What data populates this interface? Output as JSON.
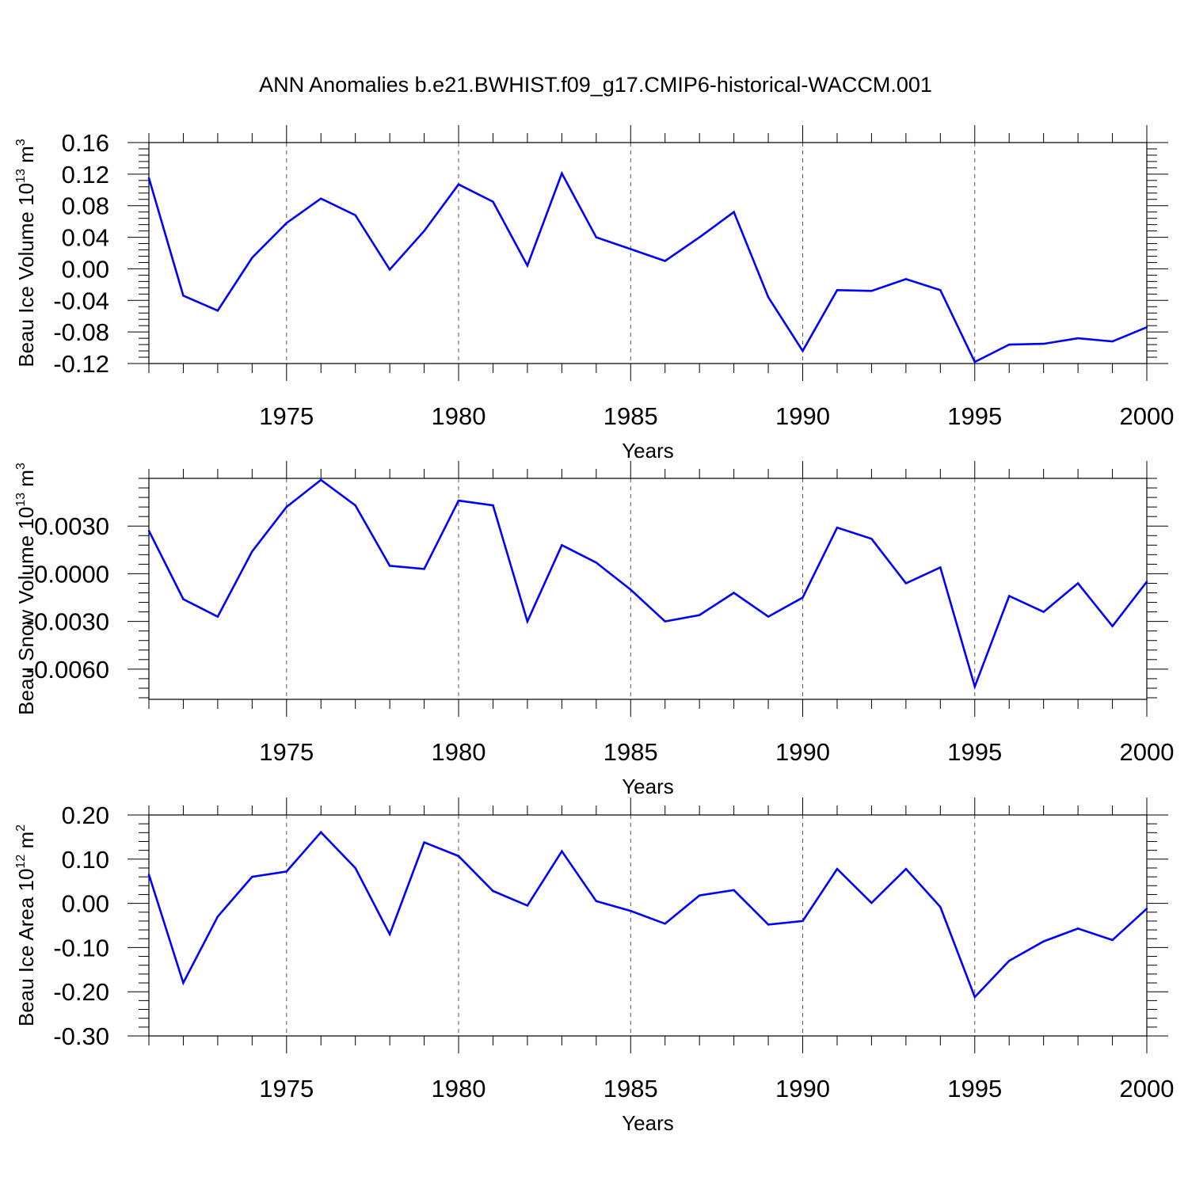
{
  "title": "ANN Anomalies b.e21.BWHIST.f09_g17.CMIP6-historical-WACCM.001",
  "colors": {
    "line": "#0000ff",
    "axis": "#000000",
    "grid": "#555555",
    "background": "#ffffff"
  },
  "chart_data": [
    {
      "type": "line",
      "ylabel": {
        "prefix": "Beau Ice Volume 10",
        "exp": "13",
        "unit": " m",
        "unit_exp": "3"
      },
      "xlabel": "Years",
      "xlim": [
        1971,
        2000
      ],
      "ylim": [
        -0.12,
        0.16
      ],
      "yticks": [
        -0.12,
        -0.08,
        -0.04,
        0.0,
        0.04,
        0.08,
        0.12,
        0.16
      ],
      "ytick_labels": [
        "-0.12",
        "-0.08",
        "-0.04",
        "0.00",
        "0.04",
        "0.08",
        "0.12",
        "0.16"
      ],
      "xticks": [
        1975,
        1980,
        1985,
        1990,
        1995,
        2000
      ],
      "xtick_labels": [
        "1975",
        "1980",
        "1985",
        "1990",
        "1995",
        "2000"
      ],
      "x": [
        1971,
        1972,
        1973,
        1974,
        1975,
        1976,
        1977,
        1978,
        1979,
        1980,
        1981,
        1982,
        1983,
        1984,
        1985,
        1986,
        1987,
        1988,
        1989,
        1990,
        1991,
        1992,
        1993,
        1994,
        1995,
        1996,
        1997,
        1998,
        1999,
        2000
      ],
      "values": [
        0.115,
        -0.034,
        -0.053,
        0.014,
        0.058,
        0.089,
        0.068,
        -0.001,
        0.048,
        0.107,
        0.085,
        0.004,
        0.121,
        0.04,
        0.025,
        0.01,
        0.04,
        0.072,
        -0.036,
        -0.104,
        -0.027,
        -0.028,
        -0.013,
        -0.027,
        -0.118,
        -0.096,
        -0.095,
        -0.088,
        -0.092,
        -0.074
      ]
    },
    {
      "type": "line",
      "ylabel": {
        "prefix": "Beau Snow Volume 10",
        "exp": "13",
        "unit": " m",
        "unit_exp": "3"
      },
      "xlabel": "Years",
      "xlim": [
        1971,
        2000
      ],
      "ylim": [
        -0.0079,
        0.006
      ],
      "yticks": [
        -0.006,
        -0.003,
        0.0,
        0.003
      ],
      "ytick_labels": [
        "-0.0060",
        "-0.0030",
        "0.0000",
        "0.0030"
      ],
      "xticks": [
        1975,
        1980,
        1985,
        1990,
        1995,
        2000
      ],
      "xtick_labels": [
        "1975",
        "1980",
        "1985",
        "1990",
        "1995",
        "2000"
      ],
      "x": [
        1971,
        1972,
        1973,
        1974,
        1975,
        1976,
        1977,
        1978,
        1979,
        1980,
        1981,
        1982,
        1983,
        1984,
        1985,
        1986,
        1987,
        1988,
        1989,
        1990,
        1991,
        1992,
        1993,
        1994,
        1995,
        1996,
        1997,
        1998,
        1999,
        2000
      ],
      "values": [
        0.0027,
        -0.0016,
        -0.0027,
        0.0014,
        0.0042,
        0.0059,
        0.0043,
        0.0005,
        0.0003,
        0.0046,
        0.0043,
        -0.003,
        0.0018,
        0.0007,
        -0.001,
        -0.003,
        -0.0026,
        -0.0012,
        -0.0027,
        -0.0015,
        0.0029,
        0.0022,
        -0.0006,
        0.0004,
        -0.0071,
        -0.0014,
        -0.0024,
        -0.0006,
        -0.0033,
        -0.0005
      ]
    },
    {
      "type": "line",
      "ylabel": {
        "prefix": "Beau Ice Area 10",
        "exp": "12",
        "unit": " m",
        "unit_exp": "2"
      },
      "xlabel": "Years",
      "xlim": [
        1971,
        2000
      ],
      "ylim": [
        -0.3,
        0.2
      ],
      "yticks": [
        -0.3,
        -0.2,
        -0.1,
        0.0,
        0.1,
        0.2
      ],
      "ytick_labels": [
        "-0.30",
        "-0.20",
        "-0.10",
        "0.00",
        "0.10",
        "0.20"
      ],
      "xticks": [
        1975,
        1980,
        1985,
        1990,
        1995,
        2000
      ],
      "xtick_labels": [
        "1975",
        "1980",
        "1985",
        "1990",
        "1995",
        "2000"
      ],
      "x": [
        1971,
        1972,
        1973,
        1974,
        1975,
        1976,
        1977,
        1978,
        1979,
        1980,
        1981,
        1982,
        1983,
        1984,
        1985,
        1986,
        1987,
        1988,
        1989,
        1990,
        1991,
        1992,
        1993,
        1994,
        1995,
        1996,
        1997,
        1998,
        1999,
        2000
      ],
      "values": [
        0.065,
        -0.18,
        -0.03,
        0.06,
        0.072,
        0.161,
        0.08,
        -0.07,
        0.138,
        0.107,
        0.028,
        -0.005,
        0.118,
        0.005,
        -0.017,
        -0.046,
        0.018,
        0.03,
        -0.048,
        -0.04,
        0.078,
        0.001,
        0.078,
        -0.008,
        -0.212,
        -0.13,
        -0.086,
        -0.057,
        -0.083,
        -0.012
      ]
    }
  ]
}
